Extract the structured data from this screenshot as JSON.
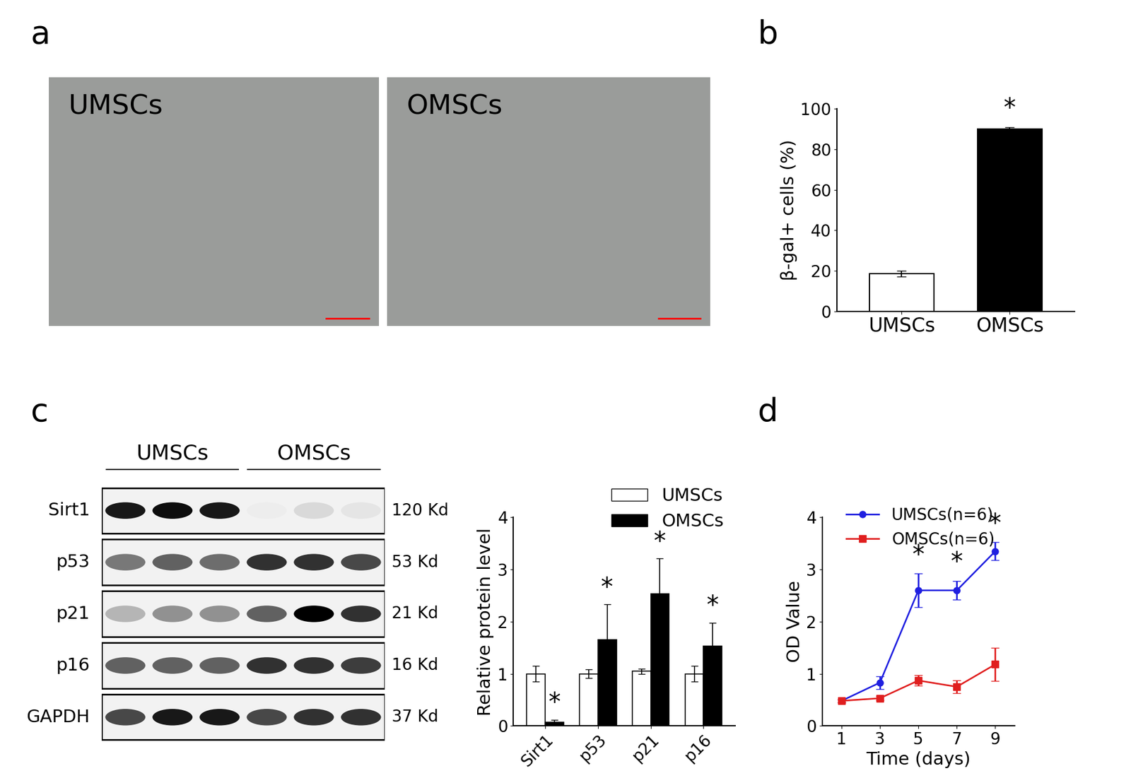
{
  "panel_labels": [
    "a",
    "b",
    "c",
    "d"
  ],
  "images": {
    "labels": [
      "UMSCs",
      "OMSCs"
    ]
  },
  "blot": {
    "groups": [
      "UMSCs",
      "OMSCs"
    ],
    "lanes_per_group": 3,
    "rows": [
      {
        "name": "Sirt1",
        "size": "120 Kd",
        "intensities": [
          0.9,
          0.95,
          0.9,
          0.02,
          0.1,
          0.05
        ]
      },
      {
        "name": "p53",
        "size": "53 Kd",
        "intensities": [
          0.5,
          0.6,
          0.55,
          0.8,
          0.8,
          0.7
        ]
      },
      {
        "name": "p21",
        "size": "21 Kd",
        "intensities": [
          0.25,
          0.4,
          0.4,
          0.6,
          1.0,
          0.8
        ]
      },
      {
        "name": "p16",
        "size": "16 Kd",
        "intensities": [
          0.6,
          0.6,
          0.6,
          0.8,
          0.8,
          0.75
        ]
      },
      {
        "name": "GAPDH",
        "size": "37 Kd",
        "intensities": [
          0.7,
          0.9,
          0.9,
          0.7,
          0.8,
          0.8
        ]
      }
    ]
  },
  "chart_data": [
    {
      "type": "bar",
      "ylabel": "β-gal+ cells (%)",
      "categories": [
        "UMSCs",
        "OMSCs"
      ],
      "values": [
        18.5,
        90.2
      ],
      "errors": [
        1.5,
        0.8
      ],
      "colors": [
        "#ffffff",
        "#000000"
      ],
      "ylim": [
        0,
        100
      ],
      "yticks": [
        0,
        20,
        40,
        60,
        80,
        100
      ],
      "annotations": [
        {
          "text": "*",
          "x": "OMSCs"
        }
      ]
    },
    {
      "type": "grouped_bar",
      "ylabel": "Relative protein level",
      "categories": [
        "Sirt1",
        "p53",
        "p21",
        "p16"
      ],
      "series": [
        {
          "name": "UMSCs",
          "color": "#ffffff",
          "values": [
            1.0,
            1.0,
            1.05,
            1.0
          ],
          "errors": [
            0.15,
            0.08,
            0.05,
            0.15
          ]
        },
        {
          "name": "OMSCs",
          "color": "#000000",
          "values": [
            0.07,
            1.65,
            2.53,
            1.53
          ],
          "errors": [
            0.05,
            0.68,
            0.68,
            0.45
          ]
        }
      ],
      "ylim": [
        0,
        4
      ],
      "yticks": [
        0,
        1,
        2,
        3,
        4
      ],
      "legend": "upper right",
      "annotations": [
        {
          "text": "*",
          "x": "Sirt1",
          "series": "OMSCs"
        },
        {
          "text": "*",
          "x": "p53",
          "series": "OMSCs"
        },
        {
          "text": "*",
          "x": "p21",
          "series": "OMSCs"
        },
        {
          "text": "*",
          "x": "p16",
          "series": "OMSCs"
        }
      ]
    },
    {
      "type": "line",
      "xlabel": "Time (days)",
      "ylabel": "OD Value",
      "x": [
        1,
        3,
        5,
        7,
        9
      ],
      "series": [
        {
          "name": "UMSCs(n=6)",
          "color": "#1f1fe0",
          "marker": "o",
          "values": [
            0.48,
            0.83,
            2.6,
            2.6,
            3.35
          ],
          "errors": [
            0.03,
            0.12,
            0.32,
            0.18,
            0.17
          ]
        },
        {
          "name": "OMSCs(n=6)",
          "color": "#e01f1f",
          "marker": "s",
          "values": [
            0.48,
            0.53,
            0.87,
            0.75,
            1.18
          ],
          "errors": [
            0.03,
            0.04,
            0.1,
            0.12,
            0.32
          ]
        }
      ],
      "xlim": [
        0,
        10
      ],
      "xticks": [
        1,
        3,
        5,
        7,
        9
      ],
      "ylim": [
        0,
        4
      ],
      "yticks": [
        0,
        1,
        2,
        3,
        4
      ],
      "legend": "upper left",
      "annotations": [
        {
          "text": "*",
          "x": 5,
          "series": "UMSCs(n=6)"
        },
        {
          "text": "*",
          "x": 7,
          "series": "UMSCs(n=6)"
        },
        {
          "text": "*",
          "x": 9,
          "series": "UMSCs(n=6)"
        }
      ]
    }
  ]
}
